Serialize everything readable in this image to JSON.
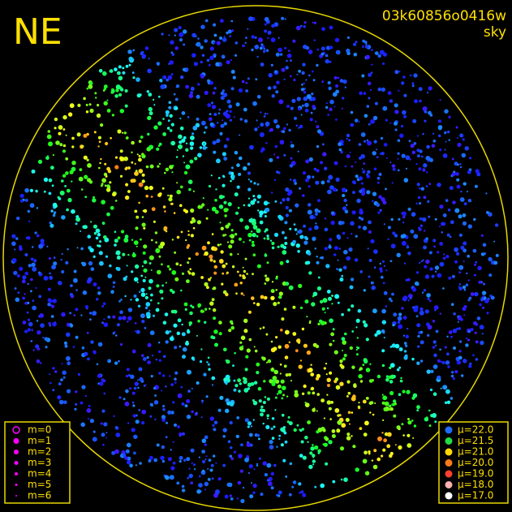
{
  "header": {
    "direction": "NE",
    "frame_id": "03k60856o0416w",
    "mode": "sky"
  },
  "magnitude_legend": {
    "color": "#ff00ff",
    "items": [
      "m=0",
      "m=1",
      "m=2",
      "m=3",
      "m=4",
      "m=5",
      "m=6"
    ]
  },
  "brightness_legend": {
    "items": [
      {
        "label": "μ=22.0",
        "color": "#1e6cff"
      },
      {
        "label": "μ=21.5",
        "color": "#22dd44"
      },
      {
        "label": "μ=21.0",
        "color": "#ffd800"
      },
      {
        "label": "μ=20.0",
        "color": "#ff7a1a"
      },
      {
        "label": "μ=19.0",
        "color": "#ff4030"
      },
      {
        "label": "μ=18.0",
        "color": "#ffb0b0"
      },
      {
        "label": "μ=17.0",
        "color": "#ffffff"
      }
    ]
  }
}
